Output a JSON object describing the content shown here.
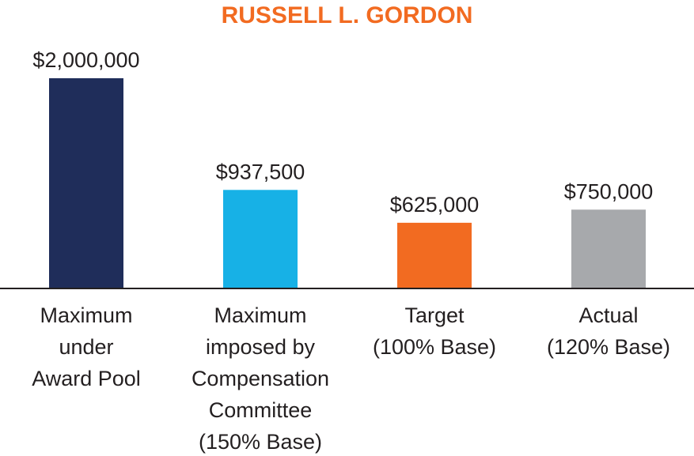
{
  "chart_data": {
    "type": "bar",
    "title": "RUSSELL L. GORDON",
    "xlabel": "",
    "ylabel": "",
    "categories": [
      [
        "Maximum",
        "under",
        "Award Pool"
      ],
      [
        "Maximum",
        "imposed by",
        "Compensation",
        "Committee",
        "(150% Base)"
      ],
      [
        "Target",
        "(100% Base)"
      ],
      [
        "Actual",
        "(120% Base)"
      ]
    ],
    "values": [
      2000000,
      937500,
      625000,
      750000
    ],
    "value_labels": [
      "$2,000,000",
      "$937,500",
      "$625,000",
      "$750,000"
    ],
    "bar_colors": [
      "#1f2d5a",
      "#17b1e6",
      "#f26b21",
      "#a7a9ac"
    ],
    "ylim": [
      0,
      2000000
    ],
    "grid": false,
    "legend": "none"
  },
  "colors": {
    "title": "#f26b21",
    "axis": "#231f20",
    "text": "#231f20"
  }
}
